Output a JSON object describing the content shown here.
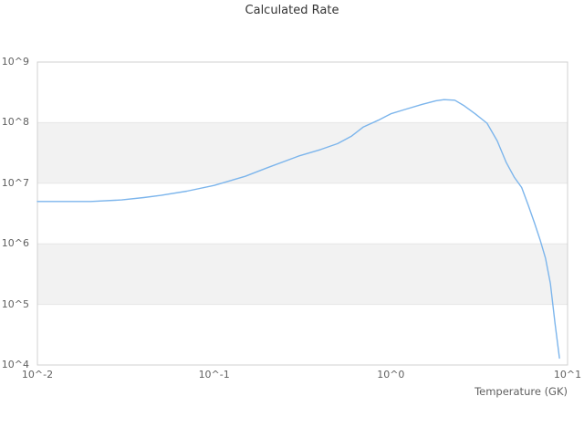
{
  "title": "Calculated Rate",
  "colors": {
    "line": "#7cb5ec",
    "band": "#f2f2f2",
    "gridline": "#e6e6e6",
    "plot_border": "#d0d0d0",
    "title_text": "#333333",
    "tick_text": "#606060",
    "background": "#ffffff"
  },
  "chart_data": {
    "type": "line",
    "title": "Calculated Rate",
    "xlabel": "Temperature (GK)",
    "ylabel": "",
    "x_scale": "log",
    "y_scale": "log",
    "xlim": [
      0.01,
      10
    ],
    "ylim": [
      10000,
      1000000000
    ],
    "grid": "horizontal decade gridlines with alternating shaded bands",
    "legend": "none",
    "shaded_bands": [
      [
        10000000,
        100000000
      ],
      [
        100000,
        1000000
      ]
    ],
    "x_ticks": [
      {
        "value": 0.01,
        "label": "10^-2"
      },
      {
        "value": 0.1,
        "label": "10^-1"
      },
      {
        "value": 1,
        "label": "10^0"
      },
      {
        "value": 10,
        "label": "10^1"
      }
    ],
    "y_ticks": [
      {
        "value": 10000,
        "label": "10^4"
      },
      {
        "value": 100000,
        "label": "10^5"
      },
      {
        "value": 1000000,
        "label": "10^6"
      },
      {
        "value": 10000000,
        "label": "10^7"
      },
      {
        "value": 100000000,
        "label": "10^8"
      },
      {
        "value": 1000000000,
        "label": "10^9"
      }
    ],
    "series": [
      {
        "name": "Calculated Rate",
        "color": "#7cb5ec",
        "x": [
          0.01,
          0.015,
          0.02,
          0.03,
          0.04,
          0.05,
          0.07,
          0.1,
          0.15,
          0.2,
          0.3,
          0.4,
          0.5,
          0.6,
          0.7,
          0.85,
          1.0,
          1.2,
          1.5,
          1.8,
          2.0,
          2.3,
          2.6,
          3.0,
          3.5,
          4.0,
          4.5,
          5.0,
          5.5,
          6.0,
          6.5,
          7.0,
          7.5,
          8.0,
          8.5,
          9.0
        ],
        "y": [
          5000000.0,
          5000000.0,
          5000000.0,
          5300000.0,
          5800000.0,
          6300000.0,
          7400000.0,
          9200000.0,
          13000000.0,
          18000000.0,
          28000000.0,
          36000000.0,
          45000000.0,
          60000000.0,
          85000000.0,
          110000000.0,
          140000000.0,
          165000000.0,
          200000000.0,
          230000000.0,
          240000000.0,
          235000000.0,
          190000000.0,
          140000000.0,
          98000000.0,
          50000000.0,
          22000000.0,
          12500000.0,
          8500000.0,
          4300000.0,
          2200000.0,
          1150000.0,
          580000.0,
          220000.0,
          48000.0,
          13000.0
        ]
      }
    ]
  }
}
